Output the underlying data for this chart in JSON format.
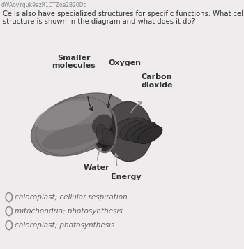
{
  "bg_color": "#eeecec",
  "header_text": "dWAoyYquk9ezR1CTZoe2B20Dq",
  "question_line1": "Cells also have specialized structures for specific functions. What cellular",
  "question_line2": "structure is shown in the diagram and what does it do?",
  "label_smaller_molecules": "Smaller\nmolecules",
  "label_oxygen": "Oxygen",
  "label_carbon_dioxide": "Carbon\ndioxide",
  "label_water": "Water",
  "label_energy": "Energy",
  "option1": "chloroplast; cellular respiration",
  "option2": "mitochondria; photosynthesis",
  "option3": "chloroplast; photosynthesis",
  "font_color": "#333333",
  "header_color": "#888888",
  "title_fontsize": 7.2,
  "label_fontsize": 8.0,
  "option_fontsize": 7.5
}
